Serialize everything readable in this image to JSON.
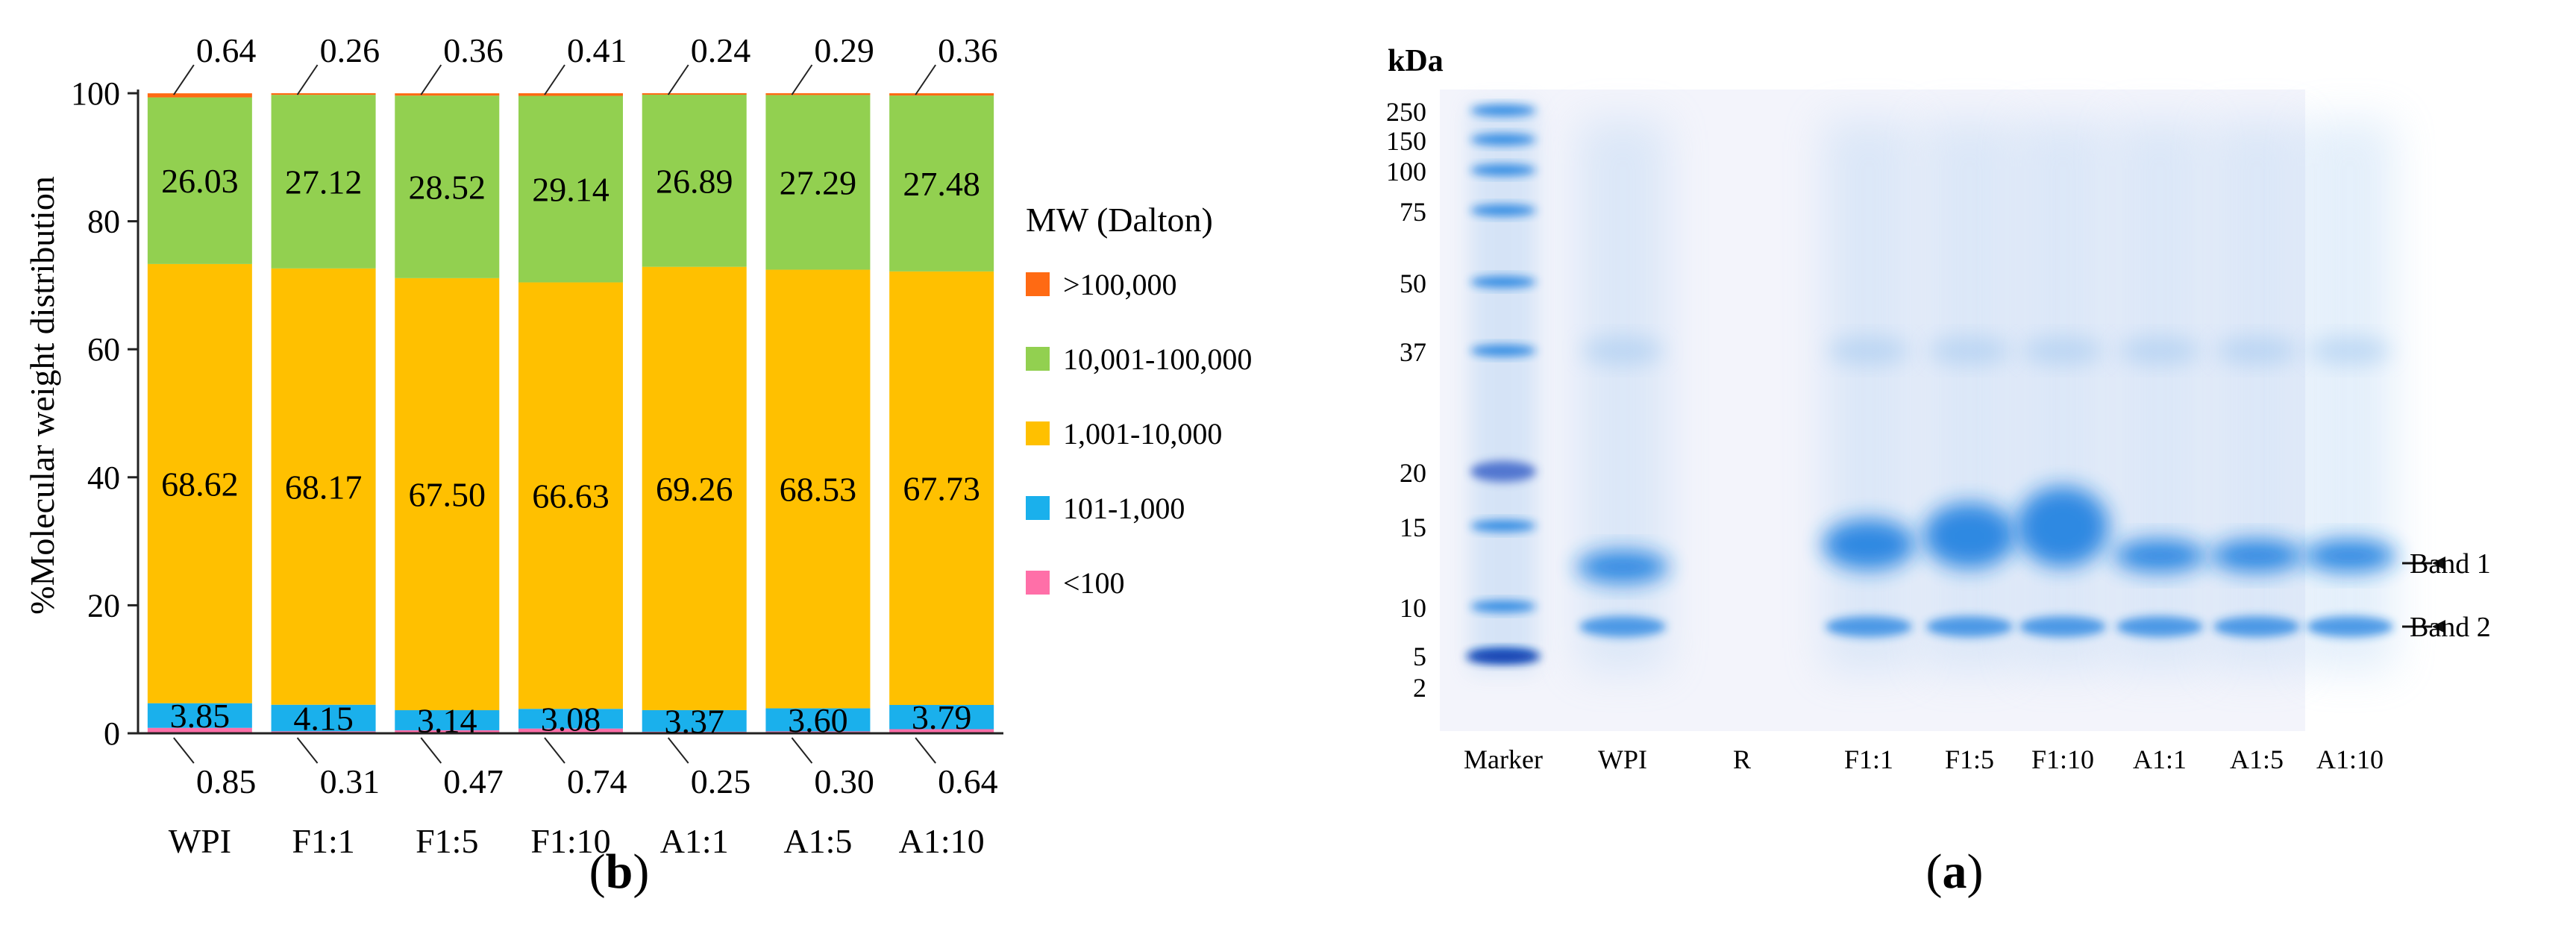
{
  "chart_data": [
    {
      "type": "bar",
      "stacked": true,
      "panel_label": "(b)",
      "ylabel": "%Molecular weight distribution",
      "ylim": [
        0,
        100
      ],
      "yticks": [
        0,
        20,
        40,
        60,
        80,
        100
      ],
      "categories": [
        "WPI",
        "F1:1",
        "F1:5",
        "F1:10",
        "A1:1",
        "A1:5",
        "A1:10"
      ],
      "legend_title": "MW (Dalton)",
      "legend_placement": "right",
      "series": [
        {
          "name": "<100",
          "color": "#ff6fa8",
          "values": [
            0.85,
            0.31,
            0.47,
            0.74,
            0.25,
            0.3,
            0.64
          ]
        },
        {
          "name": "101-1,000",
          "color": "#1ab0ec",
          "values": [
            3.85,
            4.15,
            3.14,
            3.08,
            3.37,
            3.6,
            3.79
          ]
        },
        {
          "name": "1,001-10,000",
          "color": "#ffc000",
          "values": [
            68.62,
            68.17,
            67.5,
            66.63,
            69.26,
            68.53,
            67.73
          ]
        },
        {
          "name": "10,001-100,000",
          "color": "#92d050",
          "values": [
            26.03,
            27.12,
            28.52,
            29.14,
            26.89,
            27.29,
            27.48
          ]
        },
        {
          "name": ">100,000",
          "color": "#ff6a13",
          "values": [
            0.64,
            0.26,
            0.36,
            0.41,
            0.24,
            0.29,
            0.36
          ]
        }
      ],
      "value_labels": {
        "lt100": [
          "0.85",
          "0.31",
          "0.47",
          "0.74",
          "0.25",
          "0.30",
          "0.64"
        ],
        "s101": [
          "3.85",
          "4.15",
          "3.14",
          "3.08",
          "3.37",
          "3.60",
          "3.79"
        ],
        "s1001": [
          "68.62",
          "68.17",
          "67.50",
          "66.63",
          "69.26",
          "68.53",
          "67.73"
        ],
        "s10001": [
          "26.03",
          "27.12",
          "28.52",
          "29.14",
          "26.89",
          "27.29",
          "27.48"
        ],
        "gt100k": [
          "0.64",
          "0.26",
          "0.36",
          "0.41",
          "0.24",
          "0.29",
          "0.36"
        ]
      }
    },
    {
      "type": "gel",
      "panel_label": "(a)",
      "ylabel": "kDa",
      "marker_ladder": [
        "250",
        "150",
        "100",
        "75",
        "50",
        "37",
        "20",
        "15",
        "10",
        "5",
        "2"
      ],
      "lanes": [
        "Marker",
        "WPI",
        "R",
        "F1:1",
        "F1:5",
        "F1:10",
        "A1:1",
        "A1:5",
        "A1:10"
      ],
      "annotations": [
        "Band 1",
        "Band 2"
      ]
    }
  ]
}
